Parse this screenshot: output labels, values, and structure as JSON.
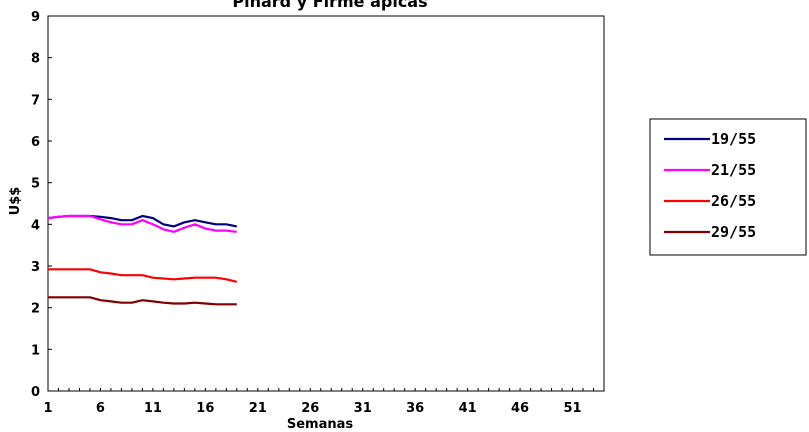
{
  "chart_data": {
    "type": "line",
    "title": "Pinard y Firme ápicas",
    "xlabel": "Semanas",
    "ylabel": "U$$",
    "xlim": [
      1,
      54
    ],
    "ylim": [
      0,
      9
    ],
    "x_ticks": [
      1,
      6,
      11,
      16,
      21,
      26,
      31,
      36,
      41,
      46,
      51
    ],
    "y_ticks": [
      0,
      1,
      2,
      3,
      4,
      5,
      6,
      7,
      8,
      9
    ],
    "grid": false,
    "legend_position": "right",
    "x": [
      1,
      2,
      3,
      4,
      5,
      6,
      7,
      8,
      9,
      10,
      11,
      12,
      13,
      14,
      15,
      16,
      17,
      18,
      19
    ],
    "series": [
      {
        "name": "19/55",
        "color": "#000080",
        "values": [
          4.15,
          4.18,
          4.2,
          4.2,
          4.2,
          4.18,
          4.15,
          4.1,
          4.1,
          4.2,
          4.15,
          4.0,
          3.95,
          4.05,
          4.1,
          4.05,
          4.0,
          4.0,
          3.95
        ]
      },
      {
        "name": "21/55",
        "color": "#ff00ff",
        "values": [
          4.15,
          4.18,
          4.2,
          4.2,
          4.2,
          4.12,
          4.05,
          4.0,
          4.0,
          4.1,
          4.0,
          3.88,
          3.82,
          3.92,
          4.0,
          3.9,
          3.85,
          3.85,
          3.82
        ]
      },
      {
        "name": "26/55",
        "color": "#ff0000",
        "values": [
          2.92,
          2.92,
          2.92,
          2.92,
          2.92,
          2.85,
          2.82,
          2.78,
          2.78,
          2.78,
          2.72,
          2.7,
          2.68,
          2.7,
          2.72,
          2.72,
          2.72,
          2.68,
          2.62
        ]
      },
      {
        "name": "29/55",
        "color": "#800000",
        "values": [
          2.25,
          2.25,
          2.25,
          2.25,
          2.25,
          2.18,
          2.15,
          2.12,
          2.12,
          2.18,
          2.15,
          2.12,
          2.1,
          2.1,
          2.12,
          2.1,
          2.08,
          2.08,
          2.08
        ]
      }
    ]
  }
}
